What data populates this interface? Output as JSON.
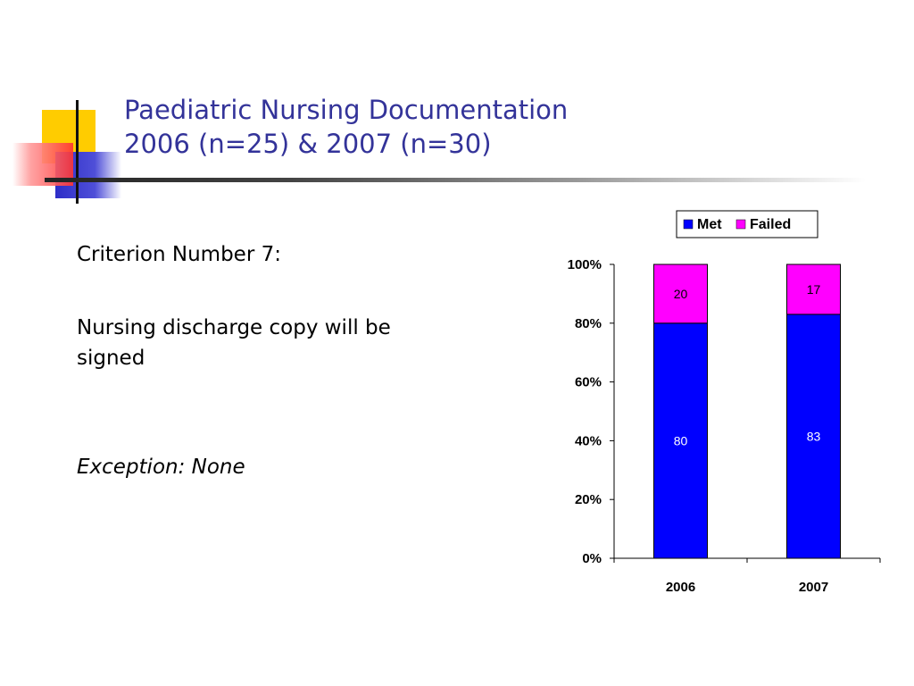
{
  "slide": {
    "title_line1": "Paediatric Nursing Documentation",
    "title_line2": "2006 (n=25) & 2007 (n=30)",
    "criterion": "Criterion Number 7:",
    "description": "Nursing discharge copy will be signed",
    "exception": "Exception: None"
  },
  "colors": {
    "title": "#333399",
    "deco_yellow": "#ffcc00",
    "deco_red": "#ff3333",
    "deco_blue": "#3333cc"
  },
  "chart_data": {
    "type": "bar",
    "stacked": true,
    "percent_scale": true,
    "categories": [
      "2006",
      "2007"
    ],
    "series": [
      {
        "name": "Met",
        "values": [
          80,
          83
        ],
        "color": "#0000ff"
      },
      {
        "name": "Failed",
        "values": [
          20,
          17
        ],
        "color": "#ff00ff"
      }
    ],
    "ylim": [
      0,
      100
    ],
    "yticks": [
      "0%",
      "20%",
      "40%",
      "60%",
      "80%",
      "100%"
    ],
    "legend_position": "top-right",
    "grid": false
  }
}
